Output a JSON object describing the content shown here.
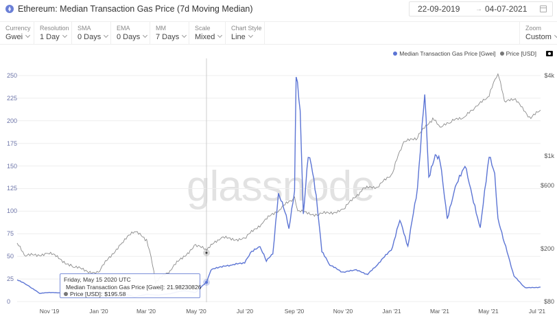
{
  "header": {
    "title": "Ethereum: Median Transaction Gas Price (7d Moving Median)",
    "asset_icon": "ethereum-icon",
    "date_from": "22-09-2019",
    "date_arrow": "→",
    "date_to": "04-07-2021",
    "calendar_icon": "calendar-icon"
  },
  "toolbar": {
    "controls": [
      {
        "label": "Currency",
        "value": "Gwei"
      },
      {
        "label": "Resolution",
        "value": "1 Day"
      },
      {
        "label": "SMA",
        "value": "0 Days"
      },
      {
        "label": "EMA",
        "value": "0 Days"
      },
      {
        "label": "MM",
        "value": "7 Days"
      },
      {
        "label": "Scale",
        "value": "Mixed"
      },
      {
        "label": "Chart Style",
        "value": "Line"
      }
    ],
    "zoom": {
      "label": "Zoom",
      "value": "Custom"
    }
  },
  "legend": {
    "items": [
      {
        "label": "Median Transaction Gas Price [Gwei]",
        "color": "#5b74d4"
      },
      {
        "label": "Price [USD]",
        "color": "#777777"
      }
    ],
    "camera_icon": "camera-icon"
  },
  "watermark": "glassnode",
  "tooltip": {
    "date": "Friday, May 15 2020 UTC",
    "gas_label": "Median Transaction Gas Price [Gwei]:",
    "gas_value": "21.98230826",
    "price_label": "Price [USD]:",
    "price_value": "$195.58"
  },
  "colors": {
    "gas": "#5b74d4",
    "price": "#777777",
    "grid": "#eeeeee",
    "crosshair": "#cccccc"
  },
  "chart_data": {
    "type": "line",
    "title": "Ethereum: Median Transaction Gas Price (7d Moving Median)",
    "xlabel": "",
    "ylabel_left": "Median Transaction Gas Price [Gwei]",
    "ylabel_right": "Price [USD] (log)",
    "x_ticks": [
      "Nov '19",
      "Jan '20",
      "Mar '20",
      "May '20",
      "Jul '20",
      "Sep '20",
      "Nov '20",
      "Jan '21",
      "Mar '21",
      "May '21",
      "Jul '21"
    ],
    "y_ticks_left": [
      "0",
      "25",
      "50",
      "75",
      "100",
      "125",
      "150",
      "175",
      "200",
      "225",
      "250"
    ],
    "y_ticks_right": [
      "$80",
      "$200",
      "$600",
      "$1k",
      "$4k"
    ],
    "ylim_left": [
      0,
      250
    ],
    "ylim_right": [
      80,
      4000
    ],
    "grid": true,
    "legend_position": "top-right",
    "series": [
      {
        "name": "Median Transaction Gas Price [Gwei]",
        "axis": "left",
        "x": [
          "2019-09-22",
          "2019-10-01",
          "2019-10-10",
          "2019-10-20",
          "2019-11-01",
          "2019-12-01",
          "2020-01-01",
          "2020-02-01",
          "2020-02-15",
          "2020-03-01",
          "2020-03-15",
          "2020-04-01",
          "2020-04-15",
          "2020-05-01",
          "2020-05-15",
          "2020-05-20",
          "2020-06-01",
          "2020-06-15",
          "2020-07-01",
          "2020-07-10",
          "2020-07-20",
          "2020-07-28",
          "2020-08-05",
          "2020-08-12",
          "2020-08-20",
          "2020-08-25",
          "2020-09-01",
          "2020-09-03",
          "2020-09-08",
          "2020-09-12",
          "2020-09-18",
          "2020-09-22",
          "2020-09-28",
          "2020-10-05",
          "2020-10-15",
          "2020-11-01",
          "2020-11-15",
          "2020-12-01",
          "2020-12-15",
          "2021-01-01",
          "2021-01-10",
          "2021-01-20",
          "2021-02-01",
          "2021-02-10",
          "2021-02-15",
          "2021-02-23",
          "2021-03-01",
          "2021-03-10",
          "2021-03-20",
          "2021-04-01",
          "2021-04-10",
          "2021-04-20",
          "2021-05-01",
          "2021-05-08",
          "2021-05-12",
          "2021-05-20",
          "2021-06-01",
          "2021-06-15",
          "2021-07-04"
        ],
        "values": [
          24,
          20,
          15,
          9,
          10,
          9,
          10,
          9,
          5,
          8,
          7,
          9,
          12,
          10,
          22,
          35,
          38,
          40,
          43,
          55,
          60,
          45,
          52,
          118,
          100,
          80,
          120,
          250,
          210,
          95,
          160,
          150,
          115,
          55,
          40,
          32,
          35,
          30,
          42,
          60,
          90,
          60,
          125,
          230,
          135,
          160,
          155,
          90,
          125,
          150,
          115,
          80,
          160,
          140,
          90,
          65,
          28,
          15,
          16
        ]
      },
      {
        "name": "Price [USD]",
        "axis": "right",
        "x": [
          "2019-09-22",
          "2019-10-01",
          "2019-11-01",
          "2019-12-01",
          "2020-01-01",
          "2020-02-01",
          "2020-02-15",
          "2020-03-01",
          "2020-03-12",
          "2020-04-01",
          "2020-05-01",
          "2020-05-15",
          "2020-06-01",
          "2020-07-01",
          "2020-07-25",
          "2020-08-15",
          "2020-09-01",
          "2020-09-05",
          "2020-10-01",
          "2020-11-01",
          "2020-11-25",
          "2020-12-15",
          "2021-01-01",
          "2021-01-15",
          "2021-02-01",
          "2021-02-20",
          "2021-03-01",
          "2021-03-15",
          "2021-04-01",
          "2021-04-15",
          "2021-05-01",
          "2021-05-12",
          "2021-05-20",
          "2021-06-01",
          "2021-06-22",
          "2021-07-04"
        ],
        "values": [
          220,
          175,
          185,
          145,
          130,
          225,
          270,
          230,
          110,
          140,
          210,
          195,
          240,
          235,
          320,
          400,
          480,
          380,
          360,
          390,
          560,
          590,
          730,
          1250,
          1370,
          1900,
          1600,
          1800,
          1950,
          2300,
          2800,
          4100,
          2500,
          2650,
          1900,
          2200
        ]
      }
    ],
    "annotations": [
      {
        "type": "crosshair",
        "x": "2020-05-15",
        "gas": 21.98230826,
        "price": 195.58
      }
    ]
  }
}
